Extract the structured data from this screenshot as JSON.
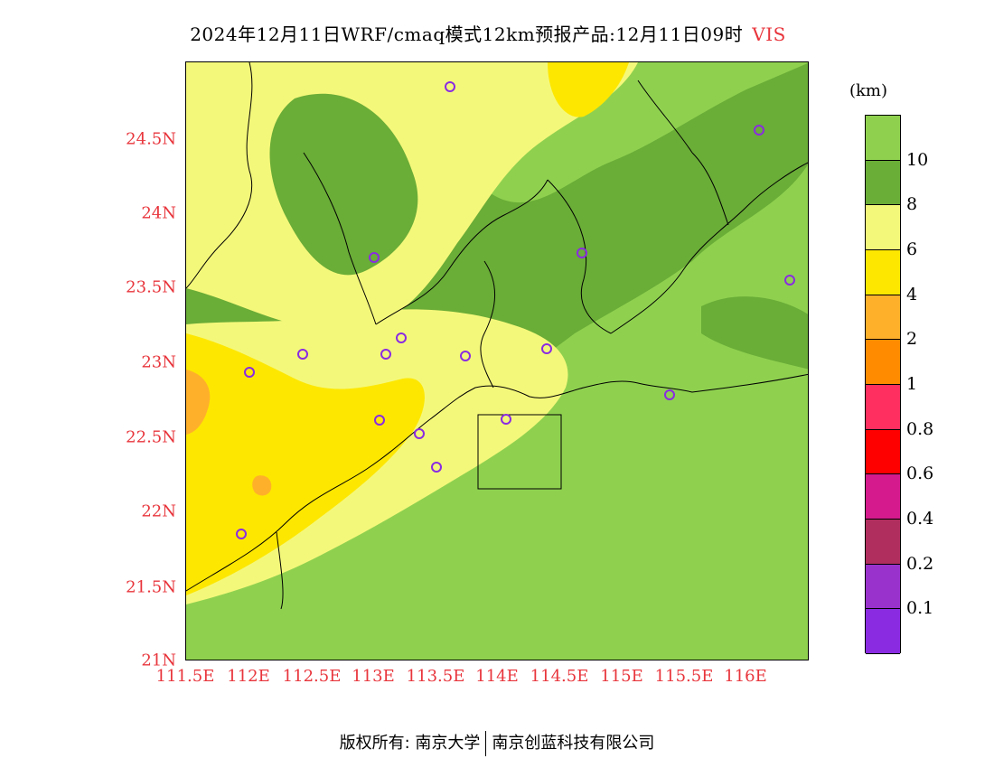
{
  "title": {
    "text": "2024年12月11日WRF/cmaq模式12km预报产品:12月11日09时",
    "variable": "VIS"
  },
  "axes": {
    "y_ticks": [
      "24.5N",
      "24N",
      "23.5N",
      "23N",
      "22.5N",
      "22N",
      "21.5N",
      "21N"
    ],
    "x_ticks": [
      "111.5E",
      "112E",
      "112.5E",
      "113E",
      "113.5E",
      "114E",
      "114.5E",
      "115E",
      "115.5E",
      "116E"
    ]
  },
  "colorbar": {
    "unit": "(km)",
    "levels": [
      "10",
      "8",
      "6",
      "4",
      "2",
      "1",
      "0.8",
      "0.6",
      "0.4",
      "0.2",
      "0.1"
    ],
    "colors": [
      "#8fd14f",
      "#6aad37",
      "#f4f87a",
      "#fde700",
      "#ffb02a",
      "#ff8c00",
      "#ff2f5f",
      "#ff0000",
      "#d41a8c",
      "#b02e5e",
      "#9932cc",
      "#8a2be2"
    ]
  },
  "footer": {
    "left": "版权所有: 南京大学",
    "right": "南京创蓝科技有限公司"
  },
  "legend_colors": {
    "station_marker": "#8a2be2",
    "axis_labels": "#e8353c"
  }
}
